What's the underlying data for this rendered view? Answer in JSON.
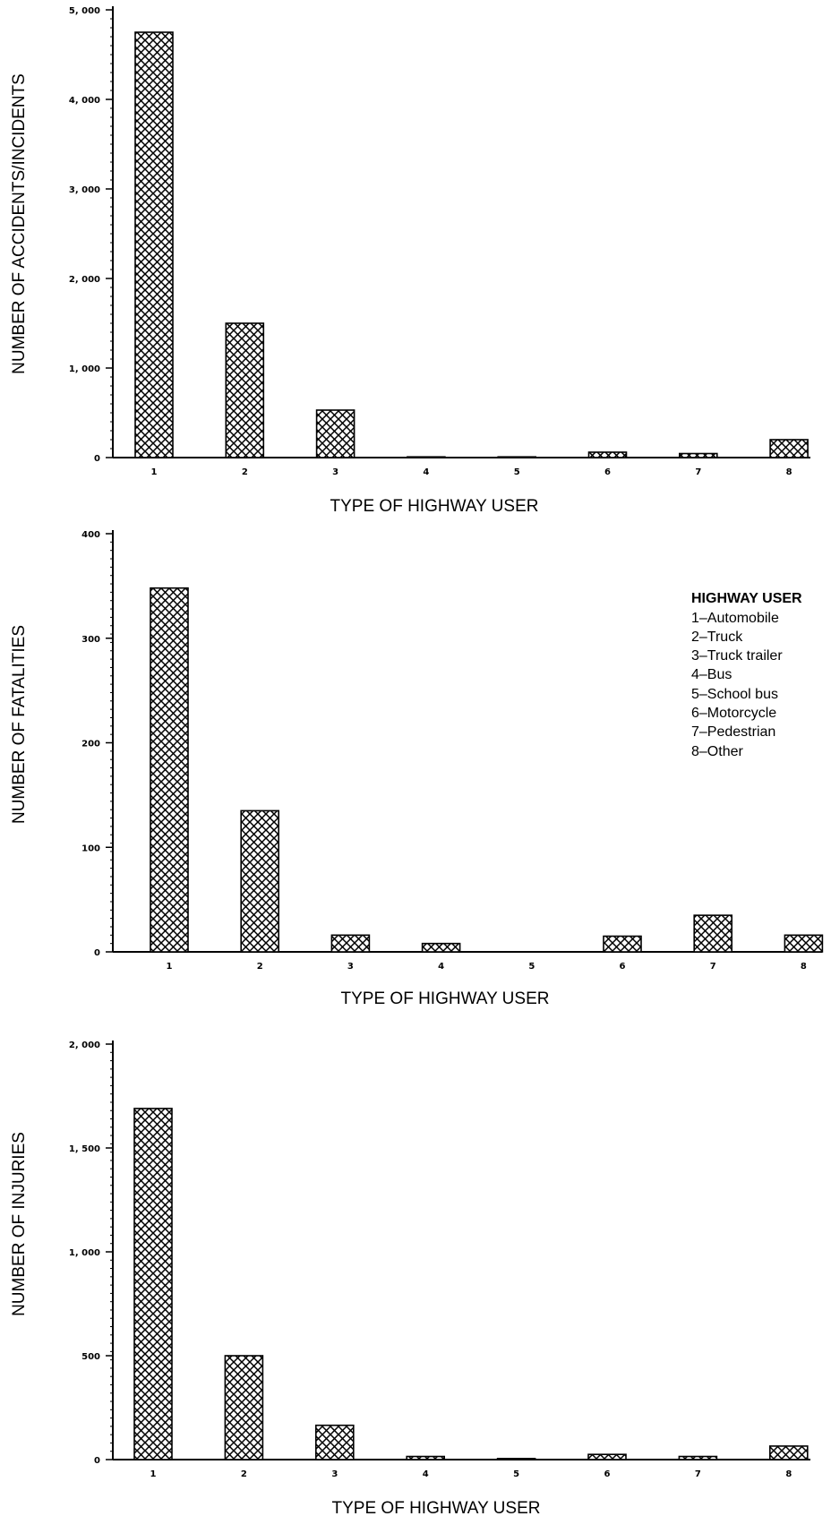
{
  "chart_data": [
    {
      "type": "bar",
      "categories": [
        "1",
        "2",
        "3",
        "4",
        "5",
        "6",
        "7",
        "8"
      ],
      "values": [
        4750,
        1500,
        530,
        8,
        8,
        60,
        45,
        200
      ],
      "title": "",
      "xlabel": "TYPE OF HIGHWAY USER",
      "ylabel": "NUMBER OF ACCIDENTS/INCIDENTS",
      "ylim": [
        0,
        5000
      ],
      "yticks": [
        0,
        1000,
        2000,
        3000,
        4000,
        5000
      ],
      "ytick_labels": [
        "0",
        "1, 000",
        "2, 000",
        "3, 000",
        "4, 000",
        "5, 000"
      ],
      "grid": false
    },
    {
      "type": "bar",
      "categories": [
        "1",
        "2",
        "3",
        "4",
        "5",
        "6",
        "7",
        "8"
      ],
      "values": [
        348,
        135,
        16,
        8,
        0,
        15,
        35,
        16
      ],
      "title": "",
      "xlabel": "TYPE OF HIGHWAY USER",
      "ylabel": "NUMBER OF FATALITIES",
      "ylim": [
        0,
        400
      ],
      "yticks": [
        0,
        100,
        200,
        300,
        400
      ],
      "ytick_labels": [
        "0",
        "100",
        "200",
        "300",
        "400"
      ],
      "grid": false,
      "legend": {
        "title": "HIGHWAY USER",
        "placement": "right",
        "entries": [
          "1–Automobile",
          "2–Truck",
          "3–Truck trailer",
          "4–Bus",
          "5–School bus",
          "6–Motorcycle",
          "7–Pedestrian",
          "8–Other"
        ]
      }
    },
    {
      "type": "bar",
      "categories": [
        "1",
        "2",
        "3",
        "4",
        "5",
        "6",
        "7",
        "8"
      ],
      "values": [
        1690,
        500,
        165,
        15,
        5,
        25,
        15,
        65
      ],
      "title": "",
      "xlabel": "TYPE OF HIGHWAY USER",
      "ylabel": "NUMBER OF INJURIES",
      "ylim": [
        0,
        2000
      ],
      "yticks": [
        0,
        500,
        1000,
        1500,
        2000
      ],
      "ytick_labels": [
        "0",
        "500",
        "1, 000",
        "1, 500",
        "2, 000"
      ],
      "grid": false
    }
  ],
  "style": {
    "bar_fill": "crosshatch",
    "ink": "#000000",
    "background": "#ffffff"
  }
}
